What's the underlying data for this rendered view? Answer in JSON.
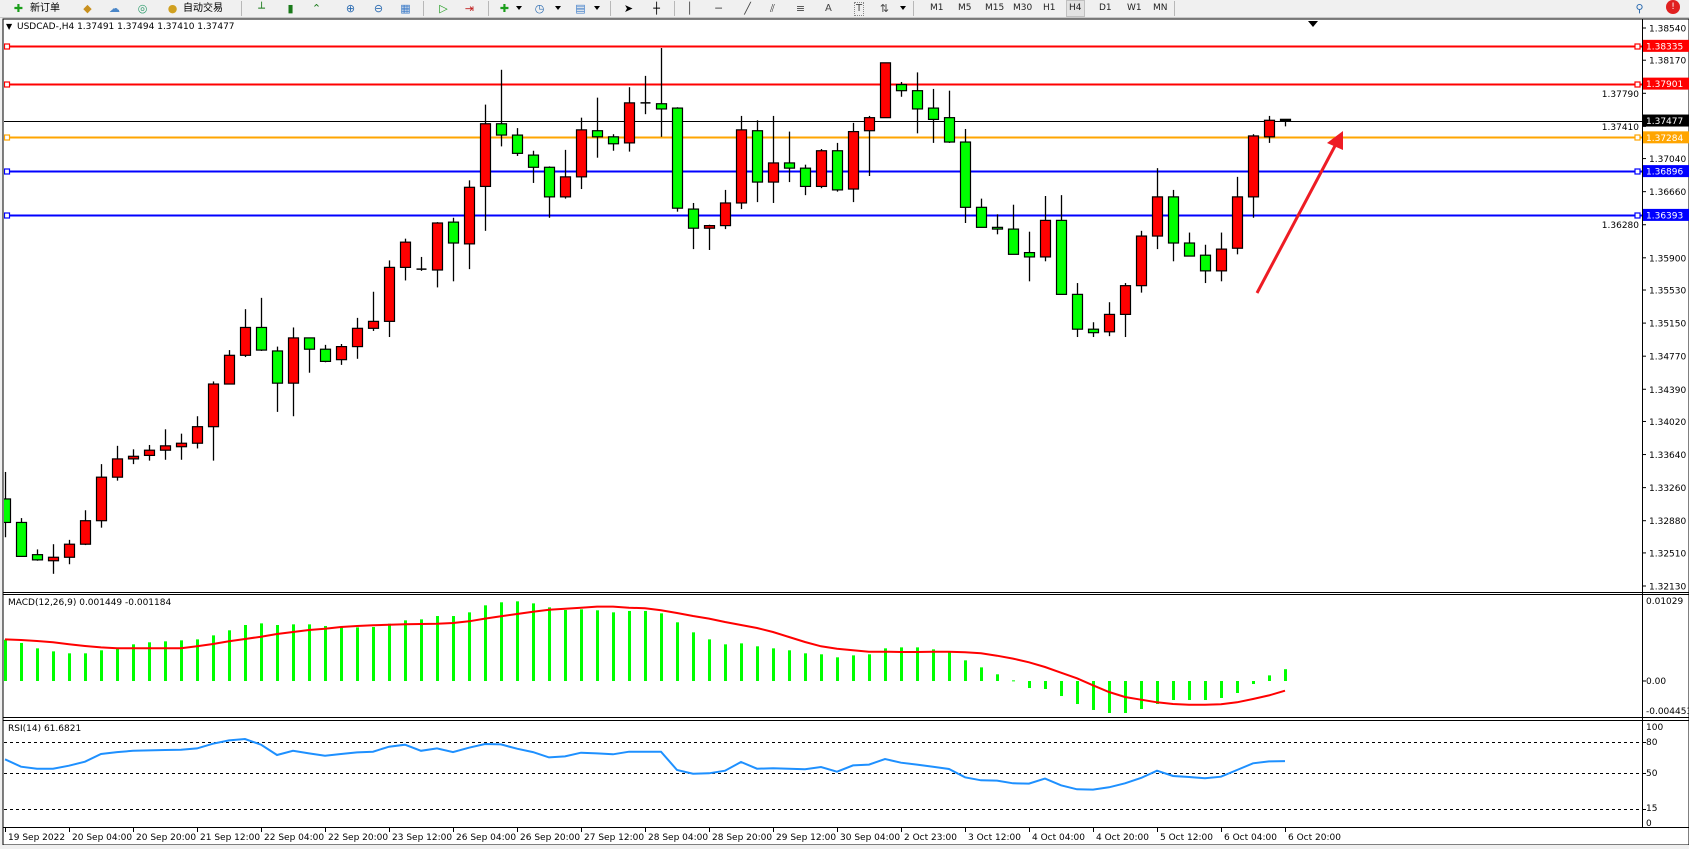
{
  "toolbar": {
    "new_order_label": "新订单",
    "auto_trading_label": "自动交易",
    "text_tool_label": "T",
    "label_tool_label": "A",
    "timeframes": [
      "M1",
      "M5",
      "M15",
      "M30",
      "H1",
      "H4",
      "D1",
      "W1",
      "MN"
    ],
    "active_timeframe": "H4",
    "icons": [
      "new-order-icon",
      "gold-icon",
      "cloud-icon",
      "signals-icon",
      "auto-trading-icon",
      "bar-chart-icon",
      "candlestick-icon",
      "line-chart-icon",
      "zoom-in-icon",
      "zoom-out-icon",
      "tile-windows-icon",
      "auto-scroll-icon",
      "chart-shift-icon",
      "indicators-icon",
      "periods-icon",
      "templates-icon",
      "cursor-icon",
      "crosshair-icon",
      "vertical-line-icon",
      "horizontal-line-icon",
      "trendline-icon",
      "equidistant-channel-icon",
      "fibonacci-icon",
      "text-icon",
      "label-icon",
      "arrows-icon",
      "search-icon",
      "notification-icon"
    ]
  },
  "chart": {
    "symbol_info": "USDCAD-,H4  1.37491 1.37494 1.37410 1.37477"
  },
  "chart_data": {
    "type": "candlestick",
    "symbol": "USDCAD-",
    "timeframe": "H4",
    "bull_color": "#ff0000",
    "bear_color": "#00ff00",
    "price_ylim": [
      1.3213,
      1.3854
    ],
    "price_ticks": [
      "1.38540",
      "1.38170",
      "1.37790",
      "1.37410",
      "1.37040",
      "1.36660",
      "1.36280",
      "1.35900",
      "1.35530",
      "1.35150",
      "1.34770",
      "1.34390",
      "1.34020",
      "1.33640",
      "1.33260",
      "1.32880",
      "1.32510",
      "1.32130"
    ],
    "current_price": {
      "value": 1.37477,
      "label": "1.37477",
      "color": "#000000"
    },
    "horizontal_lines": [
      {
        "price": 1.38335,
        "label": "1.38335",
        "color": "#ff0000"
      },
      {
        "price": 1.37901,
        "label": "1.37901",
        "color": "#ff0000"
      },
      {
        "price": 1.37284,
        "label": "1.37284",
        "color": "#ffa500"
      },
      {
        "price": 1.36896,
        "label": "1.36896",
        "color": "#0000ff"
      },
      {
        "price": 1.36393,
        "label": "1.36393",
        "color": "#0000ff"
      }
    ],
    "candles_ohlc": [
      [
        1.3313,
        1.3344,
        1.3269,
        1.3286
      ],
      [
        1.3286,
        1.3291,
        1.3247,
        1.3247
      ],
      [
        1.3249,
        1.3255,
        1.3242,
        1.3243
      ],
      [
        1.3242,
        1.3261,
        1.3227,
        1.3246
      ],
      [
        1.3246,
        1.3266,
        1.3238,
        1.3261
      ],
      [
        1.3261,
        1.33,
        1.326,
        1.3288
      ],
      [
        1.3288,
        1.3353,
        1.328,
        1.3338
      ],
      [
        1.3338,
        1.3374,
        1.3334,
        1.3359
      ],
      [
        1.3359,
        1.337,
        1.3353,
        1.3362
      ],
      [
        1.3363,
        1.3375,
        1.3357,
        1.3369
      ],
      [
        1.3369,
        1.3393,
        1.3358,
        1.3374
      ],
      [
        1.3373,
        1.3388,
        1.3358,
        1.3377
      ],
      [
        1.3377,
        1.3408,
        1.3371,
        1.3396
      ],
      [
        1.3396,
        1.3448,
        1.3357,
        1.3445
      ],
      [
        1.3445,
        1.3484,
        1.3445,
        1.3478
      ],
      [
        1.3478,
        1.3531,
        1.3476,
        1.351
      ],
      [
        1.351,
        1.3544,
        1.3483,
        1.3484
      ],
      [
        1.3483,
        1.3488,
        1.3413,
        1.3446
      ],
      [
        1.3446,
        1.351,
        1.3408,
        1.3498
      ],
      [
        1.3498,
        1.3498,
        1.3458,
        1.3485
      ],
      [
        1.3485,
        1.349,
        1.347,
        1.3471
      ],
      [
        1.3473,
        1.3491,
        1.3467,
        1.3488
      ],
      [
        1.3488,
        1.3521,
        1.3474,
        1.3509
      ],
      [
        1.3509,
        1.3551,
        1.3506,
        1.3517
      ],
      [
        1.3517,
        1.3587,
        1.3499,
        1.3579
      ],
      [
        1.3579,
        1.3612,
        1.3564,
        1.3608
      ],
      [
        1.3577,
        1.3591,
        1.3575,
        1.3576
      ],
      [
        1.3576,
        1.3631,
        1.3556,
        1.363
      ],
      [
        1.3631,
        1.3636,
        1.3563,
        1.3607
      ],
      [
        1.3606,
        1.3679,
        1.3577,
        1.3671
      ],
      [
        1.3672,
        1.3766,
        1.3621,
        1.3744
      ],
      [
        1.3744,
        1.3806,
        1.3718,
        1.3731
      ],
      [
        1.3731,
        1.3739,
        1.3707,
        1.371
      ],
      [
        1.3708,
        1.3713,
        1.3676,
        1.3694
      ],
      [
        1.3694,
        1.3695,
        1.3636,
        1.366
      ],
      [
        1.366,
        1.3714,
        1.3658,
        1.3683
      ],
      [
        1.3683,
        1.3751,
        1.3669,
        1.3737
      ],
      [
        1.3736,
        1.3774,
        1.3705,
        1.3729
      ],
      [
        1.3729,
        1.3732,
        1.3713,
        1.3721
      ],
      [
        1.3722,
        1.3786,
        1.3712,
        1.3768
      ],
      [
        1.3768,
        1.3799,
        1.3755,
        1.3767
      ],
      [
        1.3767,
        1.3831,
        1.3729,
        1.3761
      ],
      [
        1.3762,
        1.3763,
        1.3643,
        1.3647
      ],
      [
        1.3646,
        1.3653,
        1.36,
        1.3624
      ],
      [
        1.3624,
        1.3628,
        1.3599,
        1.3627
      ],
      [
        1.3627,
        1.3668,
        1.3623,
        1.3653
      ],
      [
        1.3653,
        1.3753,
        1.3646,
        1.3737
      ],
      [
        1.3736,
        1.3748,
        1.3654,
        1.3677
      ],
      [
        1.3677,
        1.3753,
        1.3653,
        1.3699
      ],
      [
        1.3699,
        1.3735,
        1.3677,
        1.3693
      ],
      [
        1.3693,
        1.3697,
        1.3662,
        1.3672
      ],
      [
        1.3672,
        1.3715,
        1.367,
        1.3713
      ],
      [
        1.3713,
        1.3722,
        1.3666,
        1.3668
      ],
      [
        1.3669,
        1.3745,
        1.3654,
        1.3735
      ],
      [
        1.3736,
        1.3753,
        1.3684,
        1.3751
      ],
      [
        1.3751,
        1.3814,
        1.3751,
        1.3814
      ],
      [
        1.3789,
        1.3792,
        1.3775,
        1.3782
      ],
      [
        1.3782,
        1.3803,
        1.3733,
        1.3761
      ],
      [
        1.3762,
        1.3784,
        1.3722,
        1.3749
      ],
      [
        1.3751,
        1.3782,
        1.3722,
        1.3723
      ],
      [
        1.3723,
        1.3738,
        1.363,
        1.3648
      ],
      [
        1.3648,
        1.3658,
        1.3625,
        1.3625
      ],
      [
        1.3625,
        1.364,
        1.3617,
        1.3623
      ],
      [
        1.3623,
        1.3651,
        1.3594,
        1.3594
      ],
      [
        1.3596,
        1.362,
        1.3563,
        1.3591
      ],
      [
        1.3591,
        1.3661,
        1.3586,
        1.3633
      ],
      [
        1.3633,
        1.3662,
        1.3548,
        1.3548
      ],
      [
        1.3548,
        1.3561,
        1.3499,
        1.3508
      ],
      [
        1.3508,
        1.3516,
        1.3499,
        1.3504
      ],
      [
        1.3505,
        1.3539,
        1.35,
        1.3525
      ],
      [
        1.3525,
        1.3561,
        1.3499,
        1.3558
      ],
      [
        1.3558,
        1.3621,
        1.355,
        1.3615
      ],
      [
        1.3615,
        1.3693,
        1.36,
        1.366
      ],
      [
        1.366,
        1.3668,
        1.3586,
        1.3607
      ],
      [
        1.3607,
        1.3619,
        1.3592,
        1.3592
      ],
      [
        1.3593,
        1.3605,
        1.3561,
        1.3575
      ],
      [
        1.3575,
        1.3619,
        1.3563,
        1.36
      ],
      [
        1.3601,
        1.3683,
        1.3594,
        1.366
      ],
      [
        1.366,
        1.3732,
        1.3636,
        1.373
      ],
      [
        1.3729,
        1.3753,
        1.3722,
        1.3748
      ],
      [
        1.37491,
        1.37494,
        1.3741,
        1.37477
      ]
    ],
    "time_labels": [
      "19 Sep 2022",
      "20 Sep 04:00",
      "20 Sep 20:00",
      "21 Sep 12:00",
      "22 Sep 04:00",
      "22 Sep 20:00",
      "23 Sep 12:00",
      "26 Sep 04:00",
      "26 Sep 20:00",
      "27 Sep 12:00",
      "28 Sep 04:00",
      "28 Sep 20:00",
      "29 Sep 12:00",
      "30 Sep 04:00",
      "2 Oct 23:00",
      "3 Oct 12:00",
      "4 Oct 04:00",
      "4 Oct 20:00",
      "5 Oct 12:00",
      "6 Oct 04:00",
      "6 Oct 20:00"
    ],
    "macd": {
      "label": "MACD(12,26,9) 0.001449 -0.001184",
      "ylim": [
        -0.004453,
        0.01029
      ],
      "axis_labels": [
        "0.01029",
        "0.00",
        "-0.004453"
      ],
      "histogram_color": "#00ff00",
      "signal_color": "#ff0000",
      "histogram": [
        0.00506,
        0.00466,
        0.004,
        0.00363,
        0.00339,
        0.00339,
        0.00376,
        0.00396,
        0.00449,
        0.00474,
        0.00486,
        0.00498,
        0.0051,
        0.00559,
        0.00621,
        0.00686,
        0.00706,
        0.00686,
        0.00694,
        0.00694,
        0.00674,
        0.00662,
        0.00657,
        0.00662,
        0.00702,
        0.00743,
        0.00755,
        0.00796,
        0.00796,
        0.00841,
        0.00927,
        0.00964,
        0.00976,
        0.00951,
        0.00902,
        0.0087,
        0.00878,
        0.00866,
        0.00841,
        0.00858,
        0.00858,
        0.00829,
        0.00719,
        0.00596,
        0.0051,
        0.00449,
        0.00461,
        0.00425,
        0.004,
        0.00376,
        0.00339,
        0.00327,
        0.0029,
        0.00314,
        0.00327,
        0.004,
        0.00412,
        0.00412,
        0.00388,
        0.00351,
        0.00253,
        0.00167,
        0.00082,
        8e-05,
        -0.00086,
        -0.00098,
        -0.00184,
        -0.00282,
        -0.00355,
        -0.00392,
        -0.00392,
        -0.00343,
        -0.00282,
        -0.00233,
        -0.00233,
        -0.00233,
        -0.00208,
        -0.00147,
        -0.00037,
        0.00069,
        0.001449
      ],
      "signal": [
        0.0051,
        0.00502,
        0.0049,
        0.00474,
        0.00449,
        0.00429,
        0.00412,
        0.004,
        0.004,
        0.004,
        0.004,
        0.004,
        0.00425,
        0.00453,
        0.00486,
        0.00515,
        0.00543,
        0.00576,
        0.006,
        0.00625,
        0.00641,
        0.00662,
        0.00674,
        0.00682,
        0.0069,
        0.00694,
        0.00698,
        0.00702,
        0.00711,
        0.00731,
        0.00764,
        0.00792,
        0.00821,
        0.00849,
        0.00874,
        0.00886,
        0.00898,
        0.00911,
        0.00911,
        0.00898,
        0.0089,
        0.00866,
        0.00833,
        0.00796,
        0.00764,
        0.00723,
        0.00686,
        0.00649,
        0.006,
        0.00539,
        0.00478,
        0.00425,
        0.00396,
        0.00376,
        0.00359,
        0.00359,
        0.00355,
        0.00355,
        0.00359,
        0.00359,
        0.00351,
        0.00339,
        0.0031,
        0.00274,
        0.00229,
        0.00171,
        0.00102,
        0.00033,
        -0.00053,
        -0.00135,
        -0.00196,
        -0.00229,
        -0.00261,
        -0.00282,
        -0.0029,
        -0.0029,
        -0.00286,
        -0.00261,
        -0.0022,
        -0.00176,
        -0.001184
      ]
    },
    "rsi": {
      "label": "RSI(14) 61.6821",
      "ylim": [
        0,
        100
      ],
      "levels": [
        80,
        50,
        15
      ],
      "axis_labels": [
        "100",
        "80",
        "50",
        "15",
        "0"
      ],
      "color": "#1e90ff",
      "values": [
        63.4,
        56.2,
        54.2,
        54.2,
        57.2,
        61.1,
        68.6,
        70.5,
        71.8,
        72.2,
        72.5,
        72.8,
        74.1,
        78.7,
        82.0,
        83.3,
        77.7,
        67.6,
        71.8,
        69.2,
        67.0,
        68.6,
        70.2,
        70.9,
        75.8,
        77.7,
        71.8,
        74.1,
        70.5,
        74.8,
        78.4,
        78.0,
        73.8,
        70.5,
        65.3,
        66.3,
        69.9,
        69.2,
        68.3,
        70.9,
        70.9,
        70.9,
        52.9,
        49.3,
        49.7,
        52.3,
        60.8,
        54.2,
        54.6,
        54.2,
        53.6,
        55.9,
        51.3,
        57.5,
        58.2,
        63.7,
        60.1,
        58.2,
        56.2,
        53.9,
        45.8,
        42.8,
        42.5,
        39.9,
        39.6,
        44.5,
        37.9,
        34.0,
        33.7,
        36.0,
        39.9,
        45.1,
        52.3,
        47.1,
        46.1,
        44.8,
        46.4,
        52.9,
        59.5,
        61.4,
        61.6821
      ]
    }
  }
}
